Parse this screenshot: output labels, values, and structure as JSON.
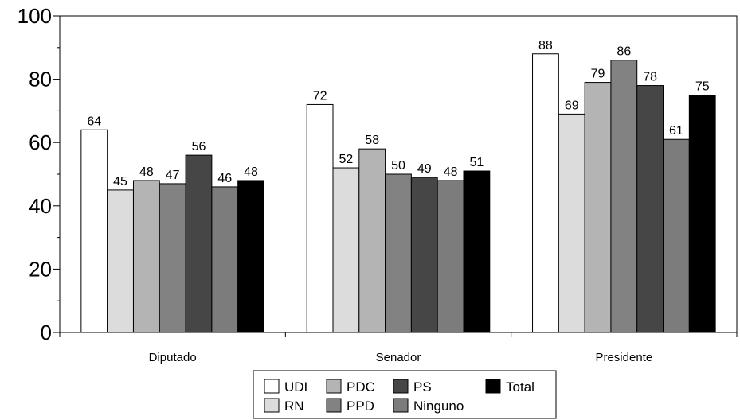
{
  "chart_data": {
    "type": "bar",
    "title": "",
    "xlabel": "",
    "ylabel": "",
    "ylim": [
      0,
      100
    ],
    "yticks": [
      0,
      20,
      40,
      60,
      80,
      100
    ],
    "grid": false,
    "legend_position": "bottom-center",
    "categories": [
      "Diputado",
      "Senador",
      "Presidente"
    ],
    "series": [
      {
        "name": "UDI",
        "color": "#ffffff",
        "values": [
          64,
          72,
          88
        ]
      },
      {
        "name": "RN",
        "color": "#dcdcdc",
        "values": [
          45,
          52,
          69
        ]
      },
      {
        "name": "PDC",
        "color": "#b4b4b4",
        "values": [
          48,
          58,
          79
        ]
      },
      {
        "name": "PPD",
        "color": "#828282",
        "values": [
          47,
          50,
          86
        ]
      },
      {
        "name": "PS",
        "color": "#464646",
        "values": [
          56,
          49,
          78
        ]
      },
      {
        "name": "Ninguno",
        "color": "#7c7c7c",
        "values": [
          46,
          48,
          61
        ]
      },
      {
        "name": "Total",
        "color": "#000000",
        "values": [
          48,
          51,
          75
        ]
      }
    ]
  }
}
